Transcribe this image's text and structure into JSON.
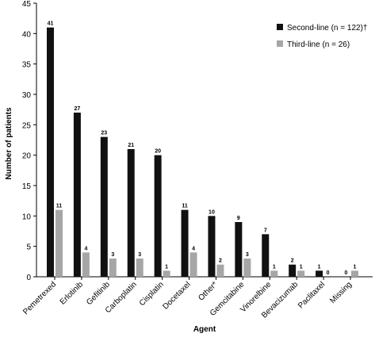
{
  "chart_data": {
    "type": "bar",
    "xlabel": "Agent",
    "ylabel": "Number of patients",
    "ylim": [
      0,
      45
    ],
    "yticks": [
      0,
      5,
      10,
      15,
      20,
      25,
      30,
      35,
      40,
      45
    ],
    "grid": false,
    "legend_position": "top-right",
    "categories": [
      "Pemetrexed",
      "Erlotinib",
      "Gefitinib",
      "Carboplatin",
      "Cisplatin",
      "Docetaxel",
      "Other*",
      "Gemcitabine",
      "Vinorelbine",
      "Bevacizumab",
      "Paclitaxel",
      "Missing"
    ],
    "series": [
      {
        "name": "Second-line (n = 122)†",
        "color": "#111111",
        "values": [
          41,
          27,
          23,
          21,
          20,
          11,
          10,
          9,
          7,
          2,
          1,
          0
        ]
      },
      {
        "name": "Third-line (n = 26)",
        "color": "#a6a6a6",
        "values": [
          11,
          4,
          3,
          3,
          1,
          4,
          2,
          3,
          1,
          1,
          0,
          1
        ]
      }
    ]
  }
}
